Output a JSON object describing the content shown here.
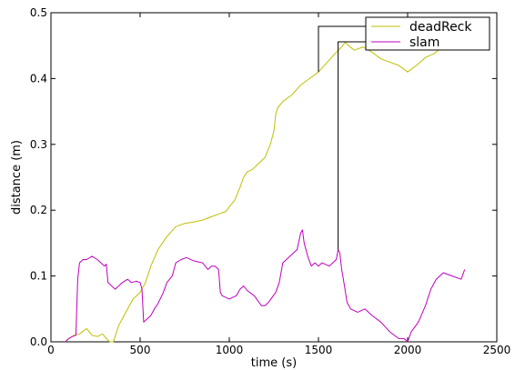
{
  "chart_data": {
    "type": "line",
    "xlabel": "time (s)",
    "ylabel": "distance (m)",
    "xlim": [
      0,
      2500
    ],
    "ylim": [
      0,
      0.5
    ],
    "xticks": [
      0,
      500,
      1000,
      1500,
      2000,
      2500
    ],
    "yticks": [
      0.0,
      0.1,
      0.2,
      0.3,
      0.4,
      0.5
    ],
    "xtick_labels": [
      "0",
      "500",
      "1000",
      "1500",
      "2000",
      "2500"
    ],
    "ytick_labels": [
      "0.0",
      "0.1",
      "0.2",
      "0.3",
      "0.4",
      "0.5"
    ],
    "grid": false,
    "legend_position": "top-right",
    "series": [
      {
        "name": "deadReck",
        "color": "#bfbf00",
        "x": [
          80,
          100,
          130,
          160,
          200,
          230,
          260,
          290,
          310,
          330,
          350,
          380,
          420,
          460,
          500,
          530,
          560,
          600,
          650,
          700,
          750,
          800,
          850,
          900,
          950,
          980,
          1000,
          1030,
          1060,
          1080,
          1100,
          1130,
          1160,
          1200,
          1230,
          1250,
          1260,
          1270,
          1300,
          1350,
          1400,
          1450,
          1500,
          1550,
          1600,
          1630,
          1650,
          1670,
          1700,
          1750,
          1800,
          1850,
          1900,
          1950,
          2000,
          2050,
          2100,
          2150,
          2180
        ],
        "y": [
          0.0,
          0.005,
          0.01,
          0.012,
          0.02,
          0.01,
          0.008,
          0.012,
          0.005,
          0.0,
          0.0,
          0.025,
          0.045,
          0.065,
          0.075,
          0.09,
          0.115,
          0.14,
          0.16,
          0.175,
          0.18,
          0.182,
          0.185,
          0.19,
          0.195,
          0.198,
          0.205,
          0.215,
          0.235,
          0.25,
          0.258,
          0.262,
          0.27,
          0.28,
          0.3,
          0.32,
          0.345,
          0.355,
          0.365,
          0.375,
          0.39,
          0.4,
          0.41,
          0.425,
          0.44,
          0.448,
          0.455,
          0.45,
          0.443,
          0.448,
          0.44,
          0.43,
          0.425,
          0.42,
          0.41,
          0.42,
          0.432,
          0.438,
          0.445
        ]
      },
      {
        "name": "slam",
        "color": "#bf00bf",
        "x": [
          80,
          100,
          120,
          140,
          150,
          160,
          180,
          200,
          230,
          260,
          300,
          310,
          320,
          340,
          360,
          380,
          400,
          430,
          450,
          480,
          500,
          510,
          520,
          540,
          560,
          580,
          600,
          630,
          650,
          680,
          700,
          730,
          760,
          800,
          850,
          880,
          900,
          920,
          940,
          950,
          960,
          1000,
          1040,
          1060,
          1080,
          1100,
          1140,
          1180,
          1200,
          1220,
          1260,
          1280,
          1300,
          1340,
          1380,
          1400,
          1410,
          1420,
          1440,
          1460,
          1480,
          1500,
          1520,
          1560,
          1600,
          1610,
          1620,
          1630,
          1640,
          1660,
          1680,
          1720,
          1760,
          1800,
          1850,
          1900,
          1950,
          1980,
          2000,
          2020,
          2060,
          2100,
          2130,
          2160,
          2200,
          2250,
          2300,
          2320
        ],
        "y": [
          0.0,
          0.005,
          0.008,
          0.01,
          0.095,
          0.12,
          0.125,
          0.125,
          0.13,
          0.125,
          0.115,
          0.118,
          0.09,
          0.085,
          0.08,
          0.085,
          0.09,
          0.095,
          0.09,
          0.092,
          0.09,
          0.08,
          0.03,
          0.035,
          0.04,
          0.05,
          0.058,
          0.075,
          0.09,
          0.1,
          0.12,
          0.125,
          0.128,
          0.123,
          0.12,
          0.11,
          0.115,
          0.115,
          0.11,
          0.075,
          0.07,
          0.065,
          0.07,
          0.08,
          0.085,
          0.078,
          0.07,
          0.055,
          0.055,
          0.06,
          0.075,
          0.09,
          0.12,
          0.13,
          0.14,
          0.165,
          0.17,
          0.15,
          0.13,
          0.115,
          0.12,
          0.115,
          0.12,
          0.115,
          0.125,
          0.14,
          0.135,
          0.11,
          0.095,
          0.06,
          0.05,
          0.045,
          0.05,
          0.04,
          0.03,
          0.015,
          0.005,
          0.005,
          0.0,
          0.015,
          0.03,
          0.055,
          0.08,
          0.095,
          0.105,
          0.1,
          0.095,
          0.11
        ]
      }
    ],
    "annotations": [
      {
        "type": "leader-line",
        "series": "deadReck",
        "x": 1500,
        "y": 0.41
      },
      {
        "type": "leader-line",
        "series": "slam",
        "x": 1610,
        "y": 0.14
      }
    ]
  }
}
